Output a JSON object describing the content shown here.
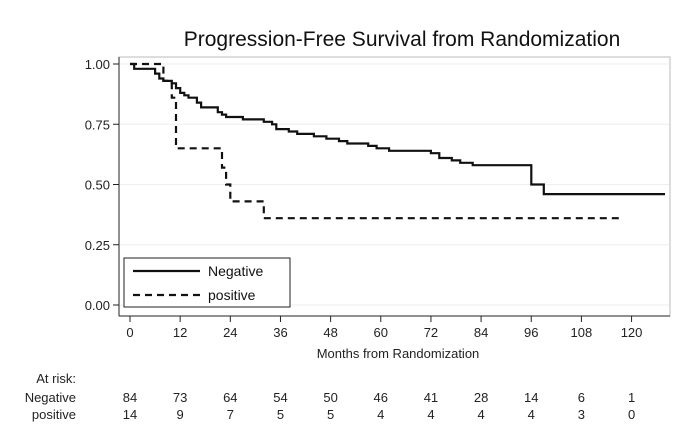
{
  "chart_data": {
    "type": "line",
    "title": "Progression-Free Survival from Randomization",
    "xlabel": "Months from Randomization",
    "ylabel": "",
    "xlim": [
      0,
      128
    ],
    "ylim": [
      0,
      1
    ],
    "x_ticks": [
      0,
      12,
      24,
      36,
      48,
      60,
      72,
      84,
      96,
      108,
      120
    ],
    "y_ticks": [
      "0.00",
      "0.25",
      "0.50",
      "0.75",
      "1.00"
    ],
    "grid": "horizontal",
    "legend_position": "bottom-left",
    "series": [
      {
        "name": "Negative",
        "style": "solid",
        "points": [
          [
            0,
            1.0
          ],
          [
            1,
            0.98
          ],
          [
            5,
            0.98
          ],
          [
            6,
            0.96
          ],
          [
            7,
            0.94
          ],
          [
            8,
            0.93
          ],
          [
            10,
            0.92
          ],
          [
            11,
            0.9
          ],
          [
            12,
            0.88
          ],
          [
            13,
            0.87
          ],
          [
            14,
            0.86
          ],
          [
            16,
            0.84
          ],
          [
            17,
            0.82
          ],
          [
            20,
            0.82
          ],
          [
            21,
            0.8
          ],
          [
            22,
            0.79
          ],
          [
            23,
            0.78
          ],
          [
            26,
            0.78
          ],
          [
            27,
            0.77
          ],
          [
            30,
            0.77
          ],
          [
            32,
            0.76
          ],
          [
            34,
            0.75
          ],
          [
            35,
            0.73
          ],
          [
            38,
            0.72
          ],
          [
            40,
            0.71
          ],
          [
            44,
            0.7
          ],
          [
            47,
            0.69
          ],
          [
            50,
            0.68
          ],
          [
            52,
            0.67
          ],
          [
            57,
            0.66
          ],
          [
            59,
            0.65
          ],
          [
            62,
            0.64
          ],
          [
            70,
            0.64
          ],
          [
            72,
            0.63
          ],
          [
            74,
            0.61
          ],
          [
            77,
            0.6
          ],
          [
            79,
            0.59
          ],
          [
            82,
            0.58
          ],
          [
            95,
            0.58
          ],
          [
            96,
            0.5
          ],
          [
            98,
            0.5
          ],
          [
            99,
            0.46
          ],
          [
            128,
            0.46
          ]
        ]
      },
      {
        "name": "positive",
        "style": "dashed",
        "points": [
          [
            0,
            1.0
          ],
          [
            7,
            1.0
          ],
          [
            8,
            0.93
          ],
          [
            10,
            0.86
          ],
          [
            11,
            0.65
          ],
          [
            21,
            0.65
          ],
          [
            22,
            0.57
          ],
          [
            23,
            0.5
          ],
          [
            24,
            0.43
          ],
          [
            28,
            0.43
          ],
          [
            32,
            0.36
          ],
          [
            118,
            0.36
          ]
        ]
      }
    ],
    "risk_table": {
      "header": "At risk:",
      "times": [
        0,
        12,
        24,
        36,
        48,
        60,
        72,
        84,
        96,
        108,
        120
      ],
      "rows": [
        {
          "label": "Negative",
          "counts": [
            "84",
            "73",
            "64",
            "54",
            "50",
            "46",
            "41",
            "28",
            "14",
            "6",
            "1"
          ]
        },
        {
          "label": "positive",
          "counts": [
            "14",
            "9",
            "7",
            "5",
            "5",
            "4",
            "4",
            "4",
            "4",
            "3",
            "0"
          ]
        }
      ]
    }
  }
}
